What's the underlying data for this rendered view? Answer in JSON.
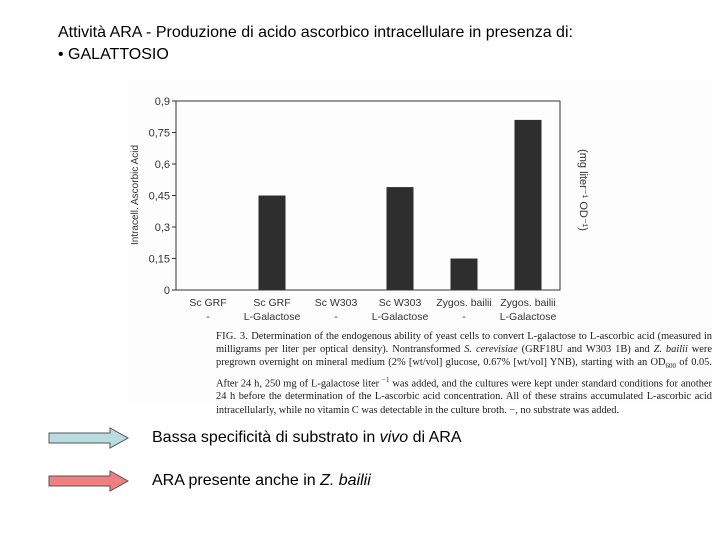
{
  "slide": {
    "title_line1": "Attività ARA - Produzione di acido ascorbico intracellulare in presenza di:",
    "title_line2": "• GALATTOSIO"
  },
  "chart_data": {
    "type": "bar",
    "categories": [
      {
        "line1": "Sc GRF",
        "line2": "-"
      },
      {
        "line1": "Sc GRF",
        "line2": "L-Galactose"
      },
      {
        "line1": "Sc W303",
        "line2": "-"
      },
      {
        "line1": "Sc W303",
        "line2": "L-Galactose"
      },
      {
        "line1": "Zygos. bailii",
        "line2": "-"
      },
      {
        "line1": "Zygos. bailii",
        "line2": "L-Galactose"
      }
    ],
    "values": [
      0,
      0.45,
      0,
      0.49,
      0.15,
      0.81
    ],
    "ylabel": "Intracell. Ascorbic Acid",
    "ylabel_right": "(mg liter⁻¹ OD⁻¹)",
    "ylim": [
      0,
      0.9
    ],
    "yticks": [
      {
        "v": 0,
        "label": "0"
      },
      {
        "v": 0.15,
        "label": "0,15"
      },
      {
        "v": 0.3,
        "label": "0,3"
      },
      {
        "v": 0.45,
        "label": "0,45"
      },
      {
        "v": 0.6,
        "label": "0,6"
      },
      {
        "v": 0.75,
        "label": "0,75"
      },
      {
        "v": 0.9,
        "label": "0,9"
      }
    ],
    "grid": false,
    "bar_color": "#2e2e2e"
  },
  "caption": {
    "fig_label": "FIG. 3.",
    "text1": " Determination of the endogenous ability of yeast cells to convert L-galactose to L-ascorbic acid (measured in milligrams per liter per optical density). Nontransformed ",
    "species1": "S. cerevisiae",
    "text2": " (GRF18U and W303 1B) and ",
    "species2": "Z. bailii",
    "text3": " were pregrown overnight on mineral medium (2% [wt/vol] glucose, 0.67% [wt/vol] YNB), starting with an OD",
    "od_sub": "600",
    "text4": " of 0.05. After 24 h, 250 mg of L-galactose liter ",
    "sup": "−1",
    "text5": " was added, and the cultures were kept under standard conditions for another 24 h before the determination of the L-ascorbic acid concentration. All of these strains accumulated L-ascorbic acid intracellularly, while no vitamin C was detectable in the culture broth. −, no substrate was added."
  },
  "bullets": [
    {
      "text_before": "Bassa specificità di substrato in ",
      "text_italic": "vivo",
      "text_after": " di ARA",
      "color": "#b8dcdf"
    },
    {
      "text_before": "ARA presente anche in ",
      "text_italic": "Z. bailii",
      "text_after": "",
      "color": "#f08080"
    }
  ]
}
